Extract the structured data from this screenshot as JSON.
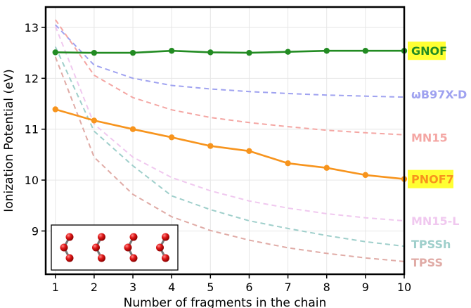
{
  "chart_data": {
    "type": "line",
    "title": "",
    "xlabel": "Number of fragments in the chain",
    "ylabel": "Ionization Potential (eV)",
    "xlim": [
      0.75,
      10.0
    ],
    "ylim": [
      8.15,
      13.4
    ],
    "x": [
      1,
      2,
      3,
      4,
      5,
      6,
      7,
      8,
      9,
      10
    ],
    "xticks": [
      "1",
      "2",
      "3",
      "4",
      "5",
      "6",
      "7",
      "8",
      "9",
      "10"
    ],
    "yticks": [
      "9",
      "10",
      "11",
      "12",
      "13"
    ],
    "grid": true,
    "legend": "labels at right end of each series",
    "series": [
      {
        "name": "GNOF",
        "style": "solid-markers",
        "color": "#228b22",
        "highlight": true,
        "values": [
          12.51,
          12.5,
          12.5,
          12.54,
          12.51,
          12.5,
          12.52,
          12.54,
          12.54,
          12.54
        ]
      },
      {
        "name": "PNOF7",
        "style": "solid-markers",
        "color": "#f7941d",
        "highlight": true,
        "values": [
          11.39,
          11.17,
          11.0,
          10.84,
          10.67,
          10.57,
          10.33,
          10.24,
          10.1,
          10.02
        ]
      },
      {
        "name": "ωB97X-D",
        "style": "dashed",
        "color": "#9fa2f0",
        "highlight": false,
        "values": [
          13.05,
          12.26,
          12.0,
          11.86,
          11.79,
          11.74,
          11.7,
          11.67,
          11.65,
          11.63
        ]
      },
      {
        "name": "MN15",
        "style": "dashed",
        "color": "#f4a6a3",
        "highlight": false,
        "values": [
          13.15,
          12.06,
          11.62,
          11.38,
          11.23,
          11.13,
          11.05,
          10.98,
          10.93,
          10.89
        ]
      },
      {
        "name": "MN15-L",
        "style": "dashed",
        "color": "#f0c8ef",
        "highlight": false,
        "values": [
          13.02,
          11.1,
          10.45,
          10.05,
          9.79,
          9.59,
          9.45,
          9.34,
          9.26,
          9.2
        ]
      },
      {
        "name": "TPSSh",
        "style": "dashed",
        "color": "#9fcfcb",
        "highlight": false,
        "values": [
          12.62,
          10.96,
          10.28,
          9.69,
          9.42,
          9.2,
          9.05,
          8.91,
          8.79,
          8.7
        ]
      },
      {
        "name": "TPSS",
        "style": "dashed",
        "color": "#e0aba6",
        "highlight": false,
        "values": [
          12.42,
          10.45,
          9.72,
          9.28,
          9.01,
          8.82,
          8.67,
          8.56,
          8.47,
          8.4
        ]
      }
    ],
    "inset": {
      "type": "molecule-chain-illustration",
      "fragments": 4
    }
  }
}
